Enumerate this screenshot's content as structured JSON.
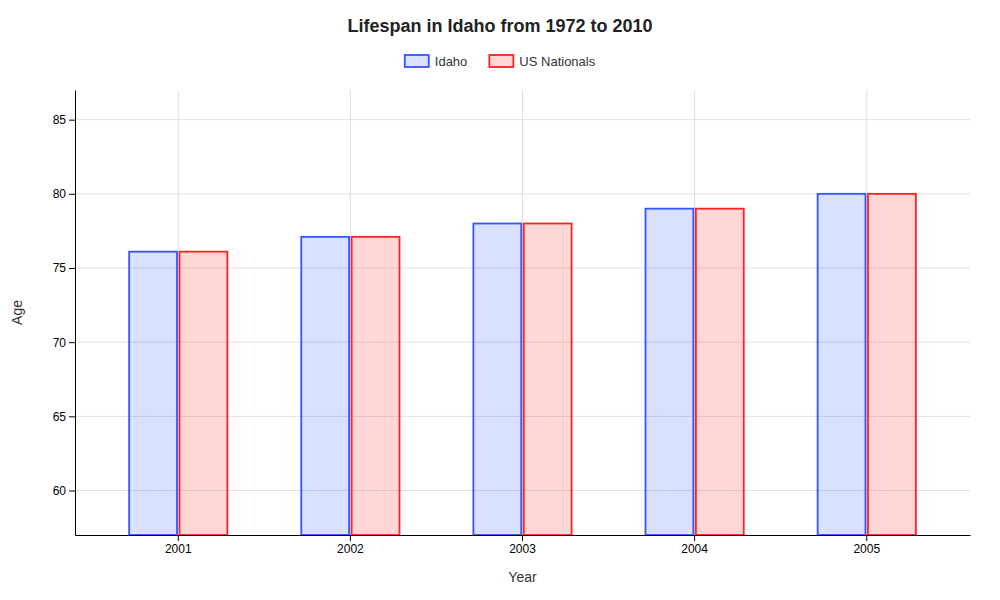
{
  "chart_data": {
    "type": "bar",
    "title": "Lifespan in Idaho from 1972 to 2010",
    "xlabel": "Year",
    "ylabel": "Age",
    "categories": [
      "2001",
      "2002",
      "2003",
      "2004",
      "2005"
    ],
    "series": [
      {
        "name": "Idaho",
        "color": "#3355ff",
        "values": [
          76.1,
          77.1,
          78.0,
          79.0,
          80.0
        ]
      },
      {
        "name": "US Nationals",
        "color": "#ff2222",
        "values": [
          76.1,
          77.1,
          78.0,
          79.0,
          80.0
        ]
      }
    ],
    "ylim": [
      57,
      87
    ],
    "yticks": [
      60,
      65,
      70,
      75,
      80,
      85
    ],
    "grid": true,
    "legend": "top"
  }
}
